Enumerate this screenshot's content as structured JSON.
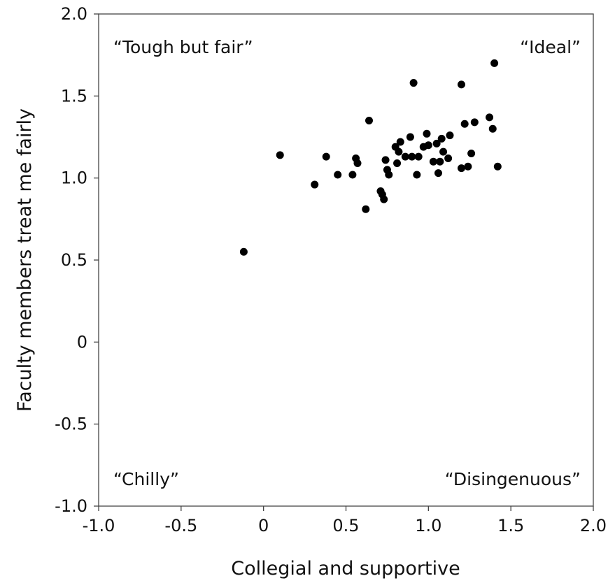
{
  "chart_data": {
    "type": "scatter",
    "xlabel": "Collegial and supportive",
    "ylabel": "Faculty members treat me fairly",
    "xlim": [
      -1.0,
      2.0
    ],
    "ylim": [
      -1.0,
      2.0
    ],
    "xticks": [
      "-1.0",
      "-0.5",
      "0",
      "0.5",
      "1.0",
      "1.5",
      "2.0"
    ],
    "yticks": [
      "-1.0",
      "-0.5",
      "0",
      "0.5",
      "1.0",
      "1.5",
      "2.0"
    ],
    "grid": false,
    "annotations": {
      "top_left": "“Tough but fair”",
      "top_right": "“Ideal”",
      "bottom_left": "“Chilly”",
      "bottom_right": "“Disingenuous”"
    },
    "series": [
      {
        "points": [
          [
            -0.12,
            0.55
          ],
          [
            0.1,
            1.14
          ],
          [
            0.31,
            0.96
          ],
          [
            0.38,
            1.13
          ],
          [
            0.45,
            1.02
          ],
          [
            0.54,
            1.02
          ],
          [
            0.56,
            1.12
          ],
          [
            0.57,
            1.09
          ],
          [
            0.62,
            0.81
          ],
          [
            0.64,
            1.35
          ],
          [
            0.71,
            0.92
          ],
          [
            0.72,
            0.9
          ],
          [
            0.73,
            0.87
          ],
          [
            0.74,
            1.11
          ],
          [
            0.75,
            1.05
          ],
          [
            0.76,
            1.02
          ],
          [
            0.8,
            1.19
          ],
          [
            0.81,
            1.09
          ],
          [
            0.82,
            1.16
          ],
          [
            0.83,
            1.22
          ],
          [
            0.86,
            1.13
          ],
          [
            0.89,
            1.25
          ],
          [
            0.9,
            1.13
          ],
          [
            0.91,
            1.58
          ],
          [
            0.93,
            1.02
          ],
          [
            0.94,
            1.13
          ],
          [
            0.97,
            1.19
          ],
          [
            0.99,
            1.27
          ],
          [
            1.0,
            1.2
          ],
          [
            1.03,
            1.1
          ],
          [
            1.05,
            1.21
          ],
          [
            1.06,
            1.03
          ],
          [
            1.07,
            1.1
          ],
          [
            1.08,
            1.24
          ],
          [
            1.09,
            1.16
          ],
          [
            1.12,
            1.12
          ],
          [
            1.13,
            1.26
          ],
          [
            1.2,
            1.06
          ],
          [
            1.2,
            1.57
          ],
          [
            1.22,
            1.33
          ],
          [
            1.24,
            1.07
          ],
          [
            1.26,
            1.15
          ],
          [
            1.28,
            1.34
          ],
          [
            1.37,
            1.37
          ],
          [
            1.39,
            1.3
          ],
          [
            1.4,
            1.7
          ],
          [
            1.42,
            1.07
          ]
        ]
      }
    ]
  }
}
